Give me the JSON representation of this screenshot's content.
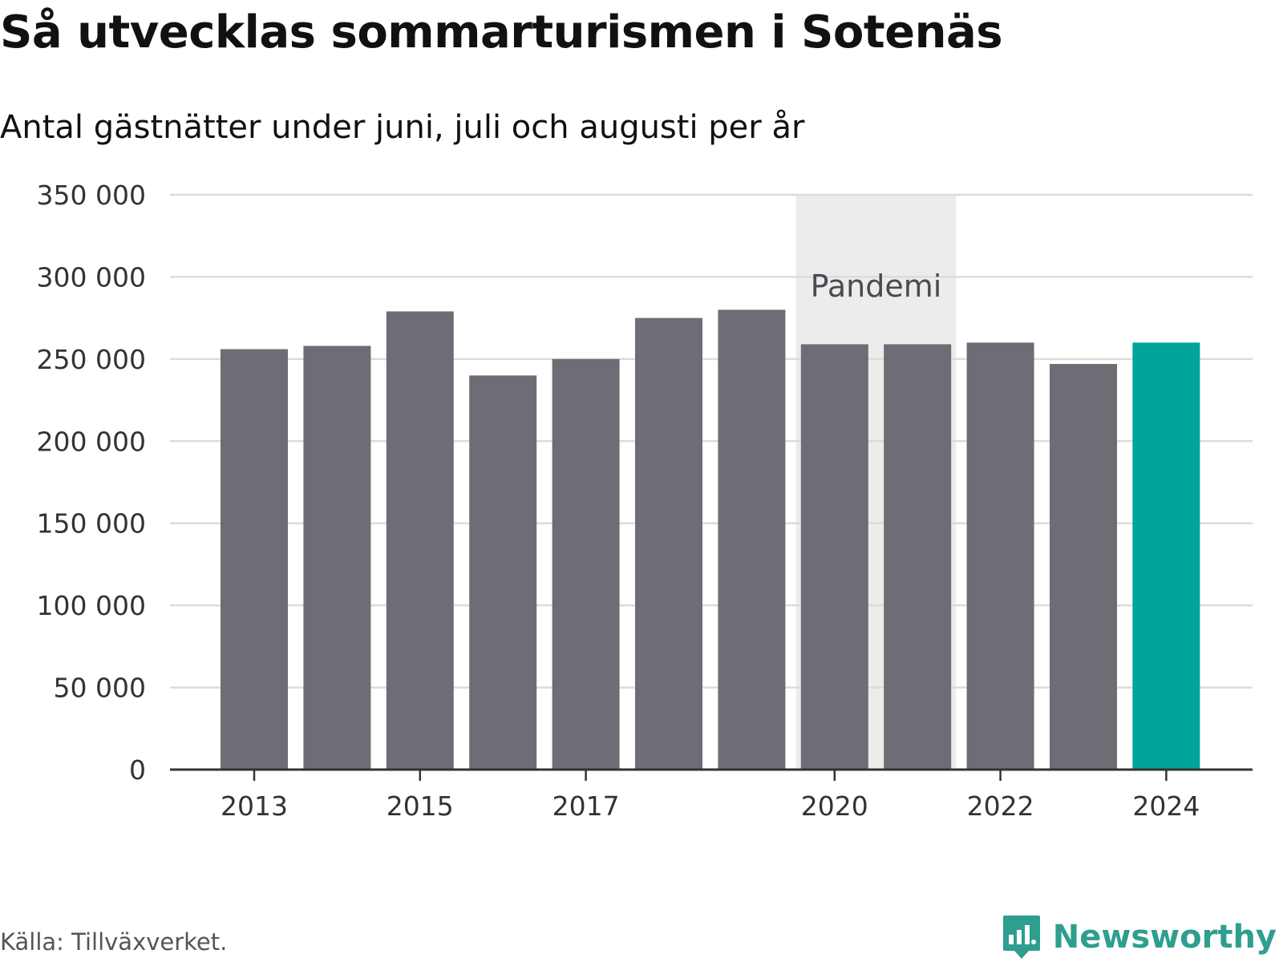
{
  "title": "Så utvecklas sommarturismen i Sotenäs",
  "subtitle": "Antal gästnätter under juni, juli och augusti per år",
  "source": "Källa: Tillväxverket.",
  "brand": {
    "name": "Newsworthy",
    "icon": "newsworthy-logo-icon",
    "color": "#2e9e8f"
  },
  "colors": {
    "bar": "#6e6d75",
    "highlight": "#00a499",
    "band": "#ececec",
    "grid": "#dcdcdc",
    "axis": "#333333"
  },
  "chart_data": {
    "type": "bar",
    "categories": [
      "2013",
      "2014",
      "2015",
      "2016",
      "2017",
      "2018",
      "2019",
      "2020",
      "2021",
      "2022",
      "2023",
      "2024"
    ],
    "values": [
      256000,
      258000,
      279000,
      240000,
      250000,
      275000,
      280000,
      259000,
      259000,
      260000,
      247000,
      260000
    ],
    "highlight_category": "2024",
    "x_tick_labels": [
      "2013",
      "2015",
      "2017",
      "2020",
      "2022",
      "2024"
    ],
    "y_ticks": [
      0,
      50000,
      100000,
      150000,
      200000,
      250000,
      300000,
      350000
    ],
    "y_tick_labels": [
      "0",
      "50 000",
      "100 000",
      "150 000",
      "200 000",
      "250 000",
      "300 000",
      "350 000"
    ],
    "ylim": [
      0,
      350000
    ],
    "grid": true,
    "xlabel": "",
    "ylabel": "",
    "annotation": {
      "label": "Pandemi",
      "from": "2020",
      "to": "2021"
    }
  }
}
